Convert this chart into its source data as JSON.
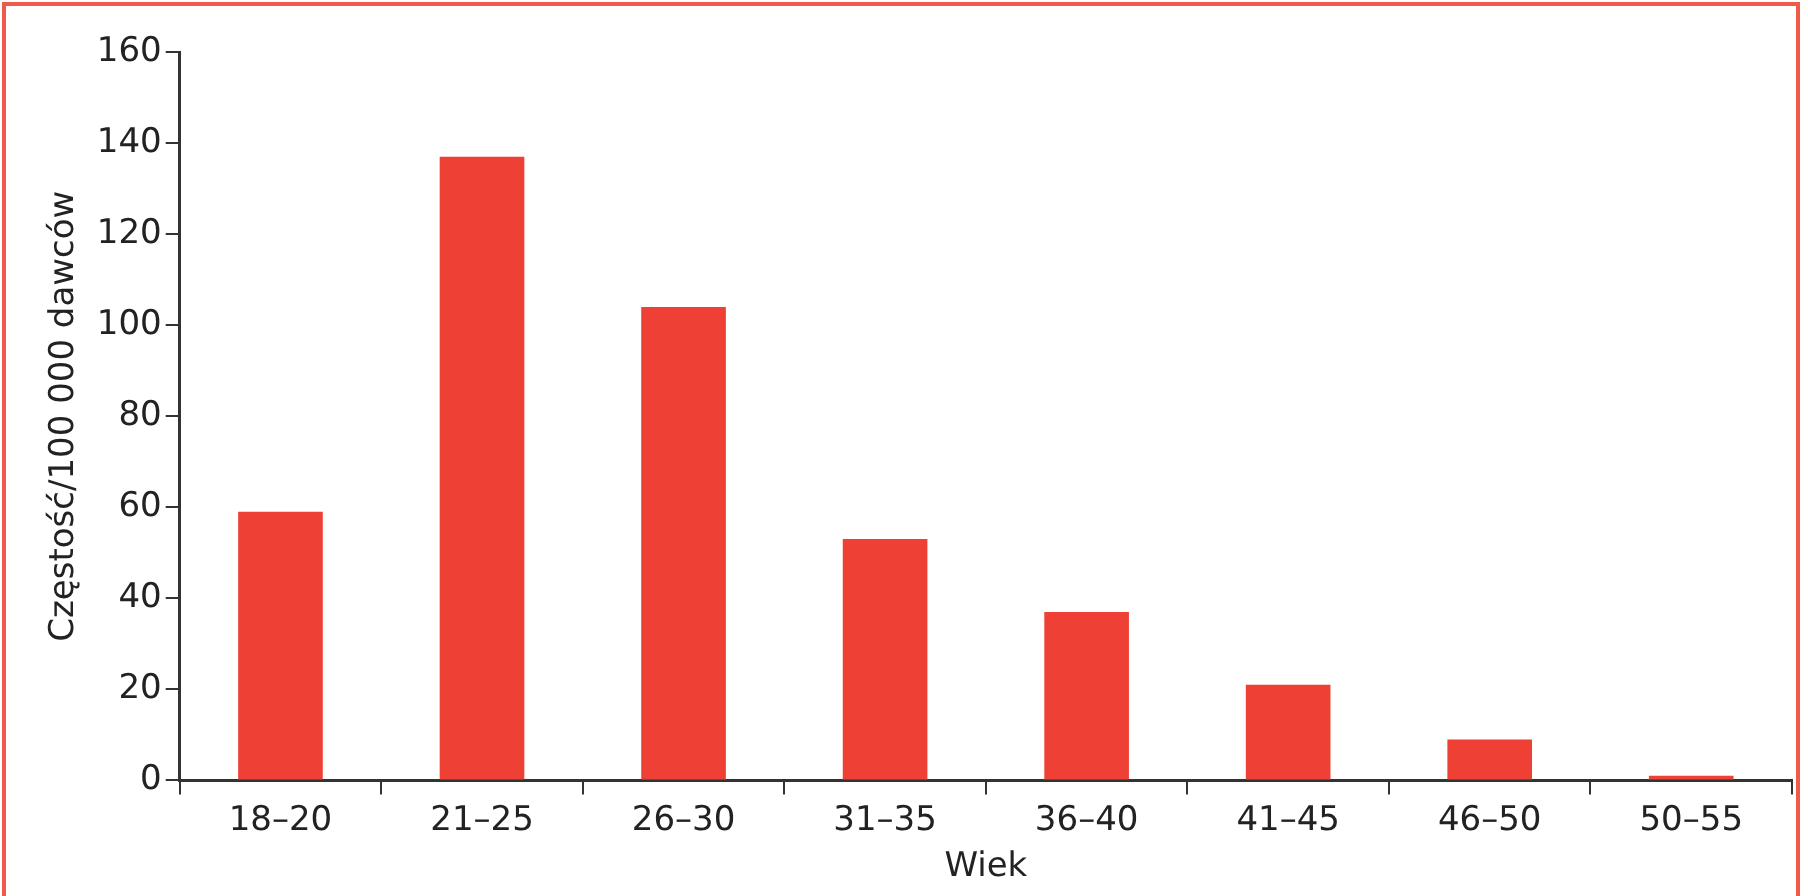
{
  "chart_data": {
    "type": "bar",
    "xlabel": "Wiek",
    "ylabel": "Częstość/100 000 dawców",
    "categories": [
      "18–20",
      "21–25",
      "26–30",
      "31–35",
      "36–40",
      "41–45",
      "46–50",
      "50–55"
    ],
    "values": [
      59,
      137,
      104,
      53,
      37,
      21,
      9,
      1
    ],
    "color": "#ef4036",
    "ylim": [
      0,
      160
    ],
    "yticks": [
      0,
      20,
      40,
      60,
      80,
      100,
      120,
      140,
      160
    ],
    "grid": false,
    "legend": false
  }
}
